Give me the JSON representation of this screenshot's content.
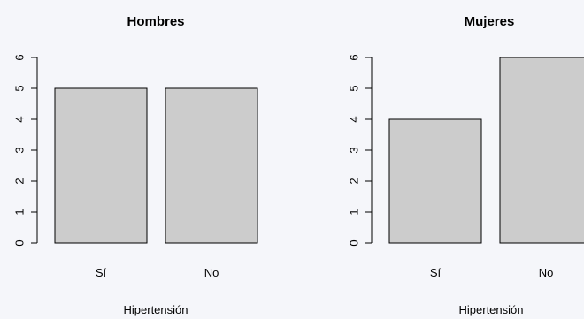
{
  "chart_data": [
    {
      "type": "bar",
      "title": "Hombres",
      "xlabel": "Hipertensión",
      "ylabel": "",
      "categories": [
        "Sí",
        "No"
      ],
      "values": [
        5,
        5
      ],
      "ylim": [
        0,
        6
      ],
      "yticks": [
        0,
        1,
        2,
        3,
        4,
        5,
        6
      ],
      "bar_color": "#cccccc",
      "grid": false
    },
    {
      "type": "bar",
      "title": "Mujeres",
      "xlabel": "Hipertensión",
      "ylabel": "",
      "categories": [
        "Sí",
        "No"
      ],
      "values": [
        4,
        6
      ],
      "ylim": [
        0,
        6
      ],
      "yticks": [
        0,
        1,
        2,
        3,
        4,
        5,
        6
      ],
      "bar_color": "#cccccc",
      "grid": false
    }
  ]
}
